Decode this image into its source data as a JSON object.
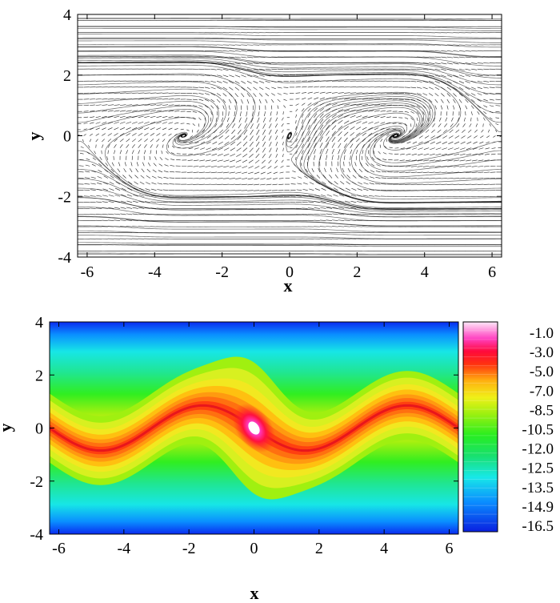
{
  "chart_data": [
    {
      "type": "vector-field",
      "title": "",
      "xlabel": "x",
      "ylabel": "y",
      "xlim": [
        -6.283,
        6.283
      ],
      "ylim": [
        -4,
        4
      ],
      "xticks": [
        "-6",
        "-4",
        "-2",
        "0",
        "2",
        "4",
        "6"
      ],
      "yticks": [
        "-4",
        "-2",
        "0",
        "2",
        "4"
      ],
      "features": {
        "vortex_center": [
          0,
          0
        ],
        "saddle_points": [
          [
            -3.1416,
            0
          ],
          [
            3.1416,
            0
          ]
        ],
        "vortex_sheet_amplitude": 0.85
      }
    },
    {
      "type": "contour",
      "title": "",
      "xlabel": "x",
      "ylabel": "y",
      "xlim": [
        -6.283,
        6.283
      ],
      "ylim": [
        -4,
        4
      ],
      "xticks": [
        "-6",
        "-4",
        "-2",
        "0",
        "2",
        "4",
        "6"
      ],
      "yticks": [
        "-4",
        "-2",
        "0",
        "2",
        "4"
      ],
      "colorbar": {
        "range": [
          -16.5,
          0
        ],
        "labels": [
          "-1.0",
          "-3.0",
          "-5.0",
          "-7.0",
          "-8.5",
          "-10.5",
          "-12.0",
          "-12.5",
          "-13.5",
          "-14.9",
          "-16.5"
        ]
      },
      "features": {
        "peak_center": [
          0,
          0
        ],
        "sheet_amplitude": 0.85
      }
    }
  ]
}
